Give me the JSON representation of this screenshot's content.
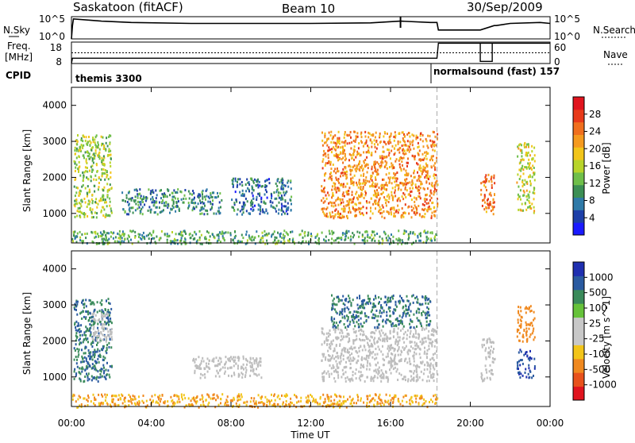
{
  "header": {
    "radar": "Saskatoon (fitACF)",
    "beam": "Beam 10",
    "date": "30/Sep/2009"
  },
  "labels": {
    "n_sky": "N.Sky",
    "n_search": "N.Search",
    "freq_line1": "Freq.",
    "freq_line2": "[MHz]",
    "nave": "Nave",
    "cpid": "CPID"
  },
  "noise_axis": {
    "left_top": "10^5",
    "left_bottom": "10^0",
    "right_top": "10^5",
    "right_bottom": "10^0"
  },
  "freq_axis": {
    "left_top": "18",
    "left_bottom": "8",
    "right_top": "60",
    "right_bottom": "0"
  },
  "cpid_modes": [
    {
      "label": "themis 3300",
      "start_hour": 0.0
    },
    {
      "label": "normalsound (fast) 157",
      "start_hour": 18.33
    }
  ],
  "colors": {
    "power_scale": [
      "#1a1aff",
      "#1d3fa8",
      "#2f7aa8",
      "#3c8f55",
      "#6fbf4a",
      "#b8d42a",
      "#f2c51a",
      "#f59a1f",
      "#f06f1e",
      "#e83a1a",
      "#e0141e"
    ],
    "velocity_scale": [
      "#1f2fb0",
      "#2a5aa0",
      "#3a8a5a",
      "#66c23a",
      "#c8c8c8",
      "#c8c8c8",
      "#f2c51a",
      "#f0891f",
      "#e8521c",
      "#e0141e"
    ],
    "ground_scatter": "#bdbdbd",
    "marker_dashed": "#aaaaaa"
  },
  "chart_data": [
    {
      "type": "line",
      "title": "",
      "xlabel": "",
      "ylabel": "N.Sky",
      "yscale": "log",
      "ylim": [
        1,
        100000
      ],
      "series": [
        {
          "x": [
            0,
            0.05,
            0.1,
            1.5,
            3,
            6,
            9,
            12,
            15,
            16.5,
            18,
            18.33,
            18.4,
            20.5,
            21.2,
            21.3,
            22,
            23.5,
            24
          ],
          "y": [
            1,
            1000,
            31623,
            10000,
            5000,
            3000,
            3000,
            3000,
            4000,
            10000,
            5000,
            5000,
            100,
            100,
            1000,
            1000,
            3000,
            5000,
            3000
          ]
        }
      ],
      "grid": false
    },
    {
      "type": "line",
      "title": "",
      "xlabel": "",
      "ylabel": "Freq. [MHz]",
      "ylim": [
        8,
        18
      ],
      "series": [
        {
          "x": [
            0,
            0.05,
            18.33,
            18.4,
            24
          ],
          "y": [
            8,
            10.5,
            10.5,
            17.5,
            17.5
          ]
        }
      ],
      "grid": false
    },
    {
      "type": "line",
      "title": "",
      "xlabel": "",
      "ylabel": "Nave",
      "ylim": [
        0,
        60
      ],
      "series": [
        {
          "x": [
            0,
            18.33,
            18.4,
            24
          ],
          "y": [
            30,
            30,
            30,
            30
          ]
        }
      ],
      "grid": false
    },
    {
      "type": "heatmap",
      "title": "",
      "xlabel": "",
      "ylabel": "Slant Range [km]",
      "ylim": [
        180,
        4500
      ],
      "xlim": [
        0,
        24
      ],
      "x_ticks": [
        0,
        4,
        8,
        12,
        16,
        20,
        24
      ],
      "y_ticks": [
        1000,
        2000,
        3000,
        4000
      ],
      "colorbar": {
        "label": "Power [dB]",
        "ticks": [
          4,
          8,
          12,
          16,
          20,
          24,
          28
        ],
        "range": [
          0,
          30
        ]
      },
      "scatter_regions": [
        {
          "t_start": 0.1,
          "t_end": 2.0,
          "r_start": 900,
          "r_end": 3200,
          "value": 14
        },
        {
          "t_start": 2.5,
          "t_end": 7.5,
          "r_start": 1000,
          "r_end": 1700,
          "value": 8
        },
        {
          "t_start": 8.0,
          "t_end": 11.0,
          "r_start": 1000,
          "r_end": 2000,
          "value": 6
        },
        {
          "t_start": 12.5,
          "t_end": 18.33,
          "r_start": 900,
          "r_end": 3300,
          "value": 22
        },
        {
          "t_start": 20.5,
          "t_end": 21.2,
          "r_start": 1000,
          "r_end": 2100,
          "value": 24
        },
        {
          "t_start": 22.3,
          "t_end": 23.2,
          "r_start": 1000,
          "r_end": 3000,
          "value": 16
        },
        {
          "t_start": 0.0,
          "t_end": 18.33,
          "r_start": 180,
          "r_end": 550,
          "value": 10
        }
      ]
    },
    {
      "type": "heatmap",
      "title": "",
      "xlabel": "Time UT",
      "ylabel": "Slant Range [km]",
      "ylim": [
        180,
        4500
      ],
      "xlim": [
        0,
        24
      ],
      "x_ticks": [
        0,
        4,
        8,
        12,
        16,
        20,
        24
      ],
      "x_tick_labels": [
        "00:00",
        "04:00",
        "08:00",
        "12:00",
        "16:00",
        "20:00",
        "00:00"
      ],
      "y_ticks": [
        1000,
        2000,
        3000,
        4000
      ],
      "colorbar": {
        "label": "Velocity [m s^-1]",
        "ticks": [
          1000,
          500,
          100,
          25,
          -25,
          -100,
          -500,
          -1000
        ]
      },
      "scatter_regions": [
        {
          "t_start": 0.1,
          "t_end": 2.0,
          "r_start": 900,
          "r_end": 3200,
          "value": 100
        },
        {
          "t_start": 1.0,
          "t_end": 2.0,
          "r_start": 2000,
          "r_end": 2800,
          "value": 0,
          "ground": true
        },
        {
          "t_start": 6.0,
          "t_end": 9.5,
          "r_start": 1000,
          "r_end": 1600,
          "value": 0,
          "ground": true
        },
        {
          "t_start": 12.5,
          "t_end": 18.33,
          "r_start": 900,
          "r_end": 2400,
          "value": 0,
          "ground": true
        },
        {
          "t_start": 13.0,
          "t_end": 18.0,
          "r_start": 2400,
          "r_end": 3300,
          "value": 100
        },
        {
          "t_start": 20.5,
          "t_end": 21.2,
          "r_start": 900,
          "r_end": 2100,
          "value": 0,
          "ground": true
        },
        {
          "t_start": 22.3,
          "t_end": 23.2,
          "r_start": 2000,
          "r_end": 3000,
          "value": -300
        },
        {
          "t_start": 22.3,
          "t_end": 23.2,
          "r_start": 1000,
          "r_end": 1800,
          "value": 500
        },
        {
          "t_start": 0.0,
          "t_end": 18.33,
          "r_start": 180,
          "r_end": 550,
          "value": -100
        }
      ]
    }
  ]
}
